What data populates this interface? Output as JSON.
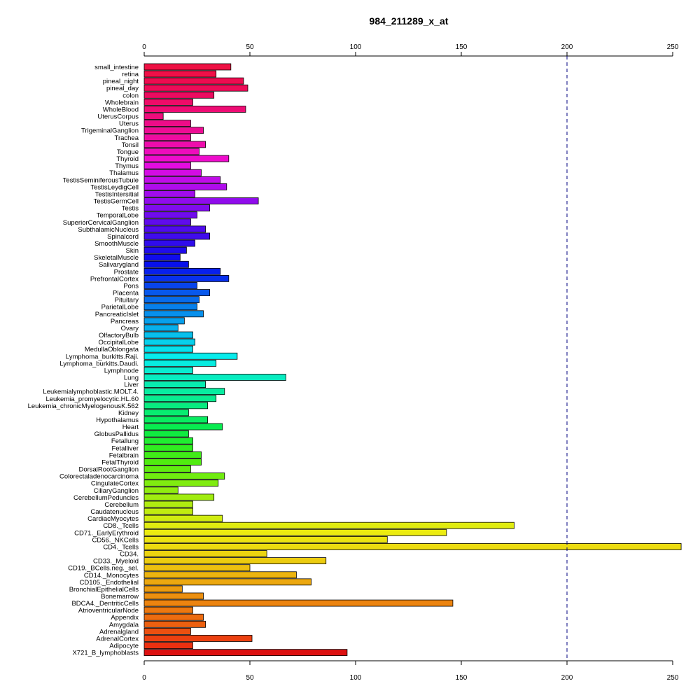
{
  "chart_data": {
    "type": "bar",
    "orientation": "horizontal",
    "title": "984_211289_x_at",
    "xlabel": "",
    "ylabel": "",
    "xlim": [
      0,
      250
    ],
    "x_ticks": [
      0,
      50,
      100,
      150,
      200,
      250
    ],
    "x_ticks_on": [
      "top",
      "bottom"
    ],
    "reference_line": {
      "value": 200,
      "style": "dashed",
      "color": "#000080"
    },
    "grid": false,
    "categories": [
      "small_intestine",
      "retina",
      "pineal_night",
      "pineal_day",
      "colon",
      "Wholebrain",
      "WholeBlood",
      "UterusCorpus",
      "Uterus",
      "TrigeminalGanglion",
      "Trachea",
      "Tonsil",
      "Tongue",
      "Thyroid",
      "Thymus",
      "Thalamus",
      "TestisSeminiferousTubule",
      "TestisLeydigCell",
      "TestisIntersitial",
      "TestisGermCell",
      "Testis",
      "TemporalLobe",
      "SuperiorCervicalGanglion",
      "SubthalamicNucleus",
      "Spinalcord",
      "SmoothMuscle",
      "Skin",
      "SkeletalMuscle",
      "Salivarygland",
      "Prostate",
      "PrefrontalCortex",
      "Pons",
      "Placenta",
      "Pituitary",
      "ParietalLobe",
      "PancreaticIslet",
      "Pancreas",
      "Ovary",
      "OlfactoryBulb",
      "OccipitalLobe",
      "MedullaOblongata",
      "Lymphoma_burkitts.Raji.",
      "Lymphoma_burkitts.Daudi.",
      "Lymphnode",
      "Lung",
      "Liver",
      "Leukemialymphoblastic.MOLT.4.",
      "Leukemia_promyelocytic.HL.60",
      "Leukemia_chronicMyelogenousK.562",
      "Kidney",
      "Hypothalamus",
      "Heart",
      "GlobusPallidus",
      "Fetallung",
      "Fetalliver",
      "Fetalbrain",
      "FetalThyroid",
      "DorsalRootGanglion",
      "Colorectaladenocarcinoma",
      "CingulateCortex",
      "CiliaryGanglion",
      "CerebellumPeduncles",
      "Cerebellum",
      "Caudatenucleus",
      "CardiacMyocytes",
      "CD8._Tcells",
      "CD71._EarlyErythroid",
      "CD56._NKCells",
      "CD4._Tcells",
      "CD34.",
      "CD33._Myeloid",
      "CD19._BCells.neg._sel.",
      "CD14._Monocytes",
      "CD105._Endothelial",
      "BronchialEpithelialCells",
      "Bonemarrow",
      "BDCA4._DentriticCells",
      "AtrioventricularNode",
      "Appendix",
      "Amygdala",
      "Adrenalgland",
      "AdrenalCortex",
      "Adipocyte",
      "X721_B_lymphoblasts"
    ],
    "values": [
      41,
      34,
      47,
      49,
      33,
      23,
      48,
      9,
      22,
      28,
      22,
      29,
      26,
      40,
      22,
      27,
      36,
      39,
      24,
      54,
      31,
      25,
      22,
      29,
      31,
      24,
      20,
      17,
      21,
      36,
      40,
      25,
      31,
      26,
      25,
      28,
      19,
      16,
      23,
      24,
      23,
      44,
      34,
      23,
      67,
      29,
      38,
      34,
      30,
      21,
      30,
      37,
      21,
      23,
      23,
      27,
      27,
      22,
      38,
      35,
      16,
      33,
      23,
      23,
      37,
      175,
      143,
      115,
      254,
      58,
      86,
      50,
      72,
      79,
      18,
      28,
      146,
      23,
      28,
      29,
      22,
      51,
      23,
      96
    ],
    "bar_colors": [
      "#ee1144",
      "#f01048",
      "#ee0c50",
      "#ee0c58",
      "#ec0c60",
      "#ee0c68",
      "#ee0c74",
      "#ee0c7c",
      "#ee0c88",
      "#ee0c94",
      "#ee0ca0",
      "#ee0cac",
      "#ee0cbc",
      "#ee0ccc",
      "#e40ce0",
      "#d40ce4",
      "#c00ce8",
      "#b00cec",
      "#a00cec",
      "#900cec",
      "#800cec",
      "#700cec",
      "#600cec",
      "#500cec",
      "#400cec",
      "#300cec",
      "#200cec",
      "#100cec",
      "#0810ec",
      "#0820ec",
      "#0830ec",
      "#0844ec",
      "#0858ec",
      "#086cec",
      "#0880ec",
      "#0890ec",
      "#08a0ec",
      "#08b0ec",
      "#08c0ec",
      "#08d0ec",
      "#08e0ec",
      "#08ecec",
      "#08ece0",
      "#08ecd0",
      "#08ecc0",
      "#08ecb0",
      "#08eca0",
      "#08ec90",
      "#08ec80",
      "#08ec70",
      "#08ec60",
      "#08ec50",
      "#10ec40",
      "#20ec30",
      "#30ec20",
      "#40ec18",
      "#50ec10",
      "#60ec10",
      "#70ec10",
      "#80ec10",
      "#90ec10",
      "#a0ec10",
      "#b0ec10",
      "#c0ec10",
      "#d0ec10",
      "#e0ec10",
      "#ecec10",
      "#ece410",
      "#ecdc10",
      "#ecd410",
      "#eccc10",
      "#ecc010",
      "#ecb410",
      "#eca810",
      "#ec9c10",
      "#ec9010",
      "#ec8410",
      "#ec7810",
      "#ec6c10",
      "#ec6010",
      "#ec5010",
      "#ec4010",
      "#ec3010",
      "#dd1010"
    ]
  }
}
